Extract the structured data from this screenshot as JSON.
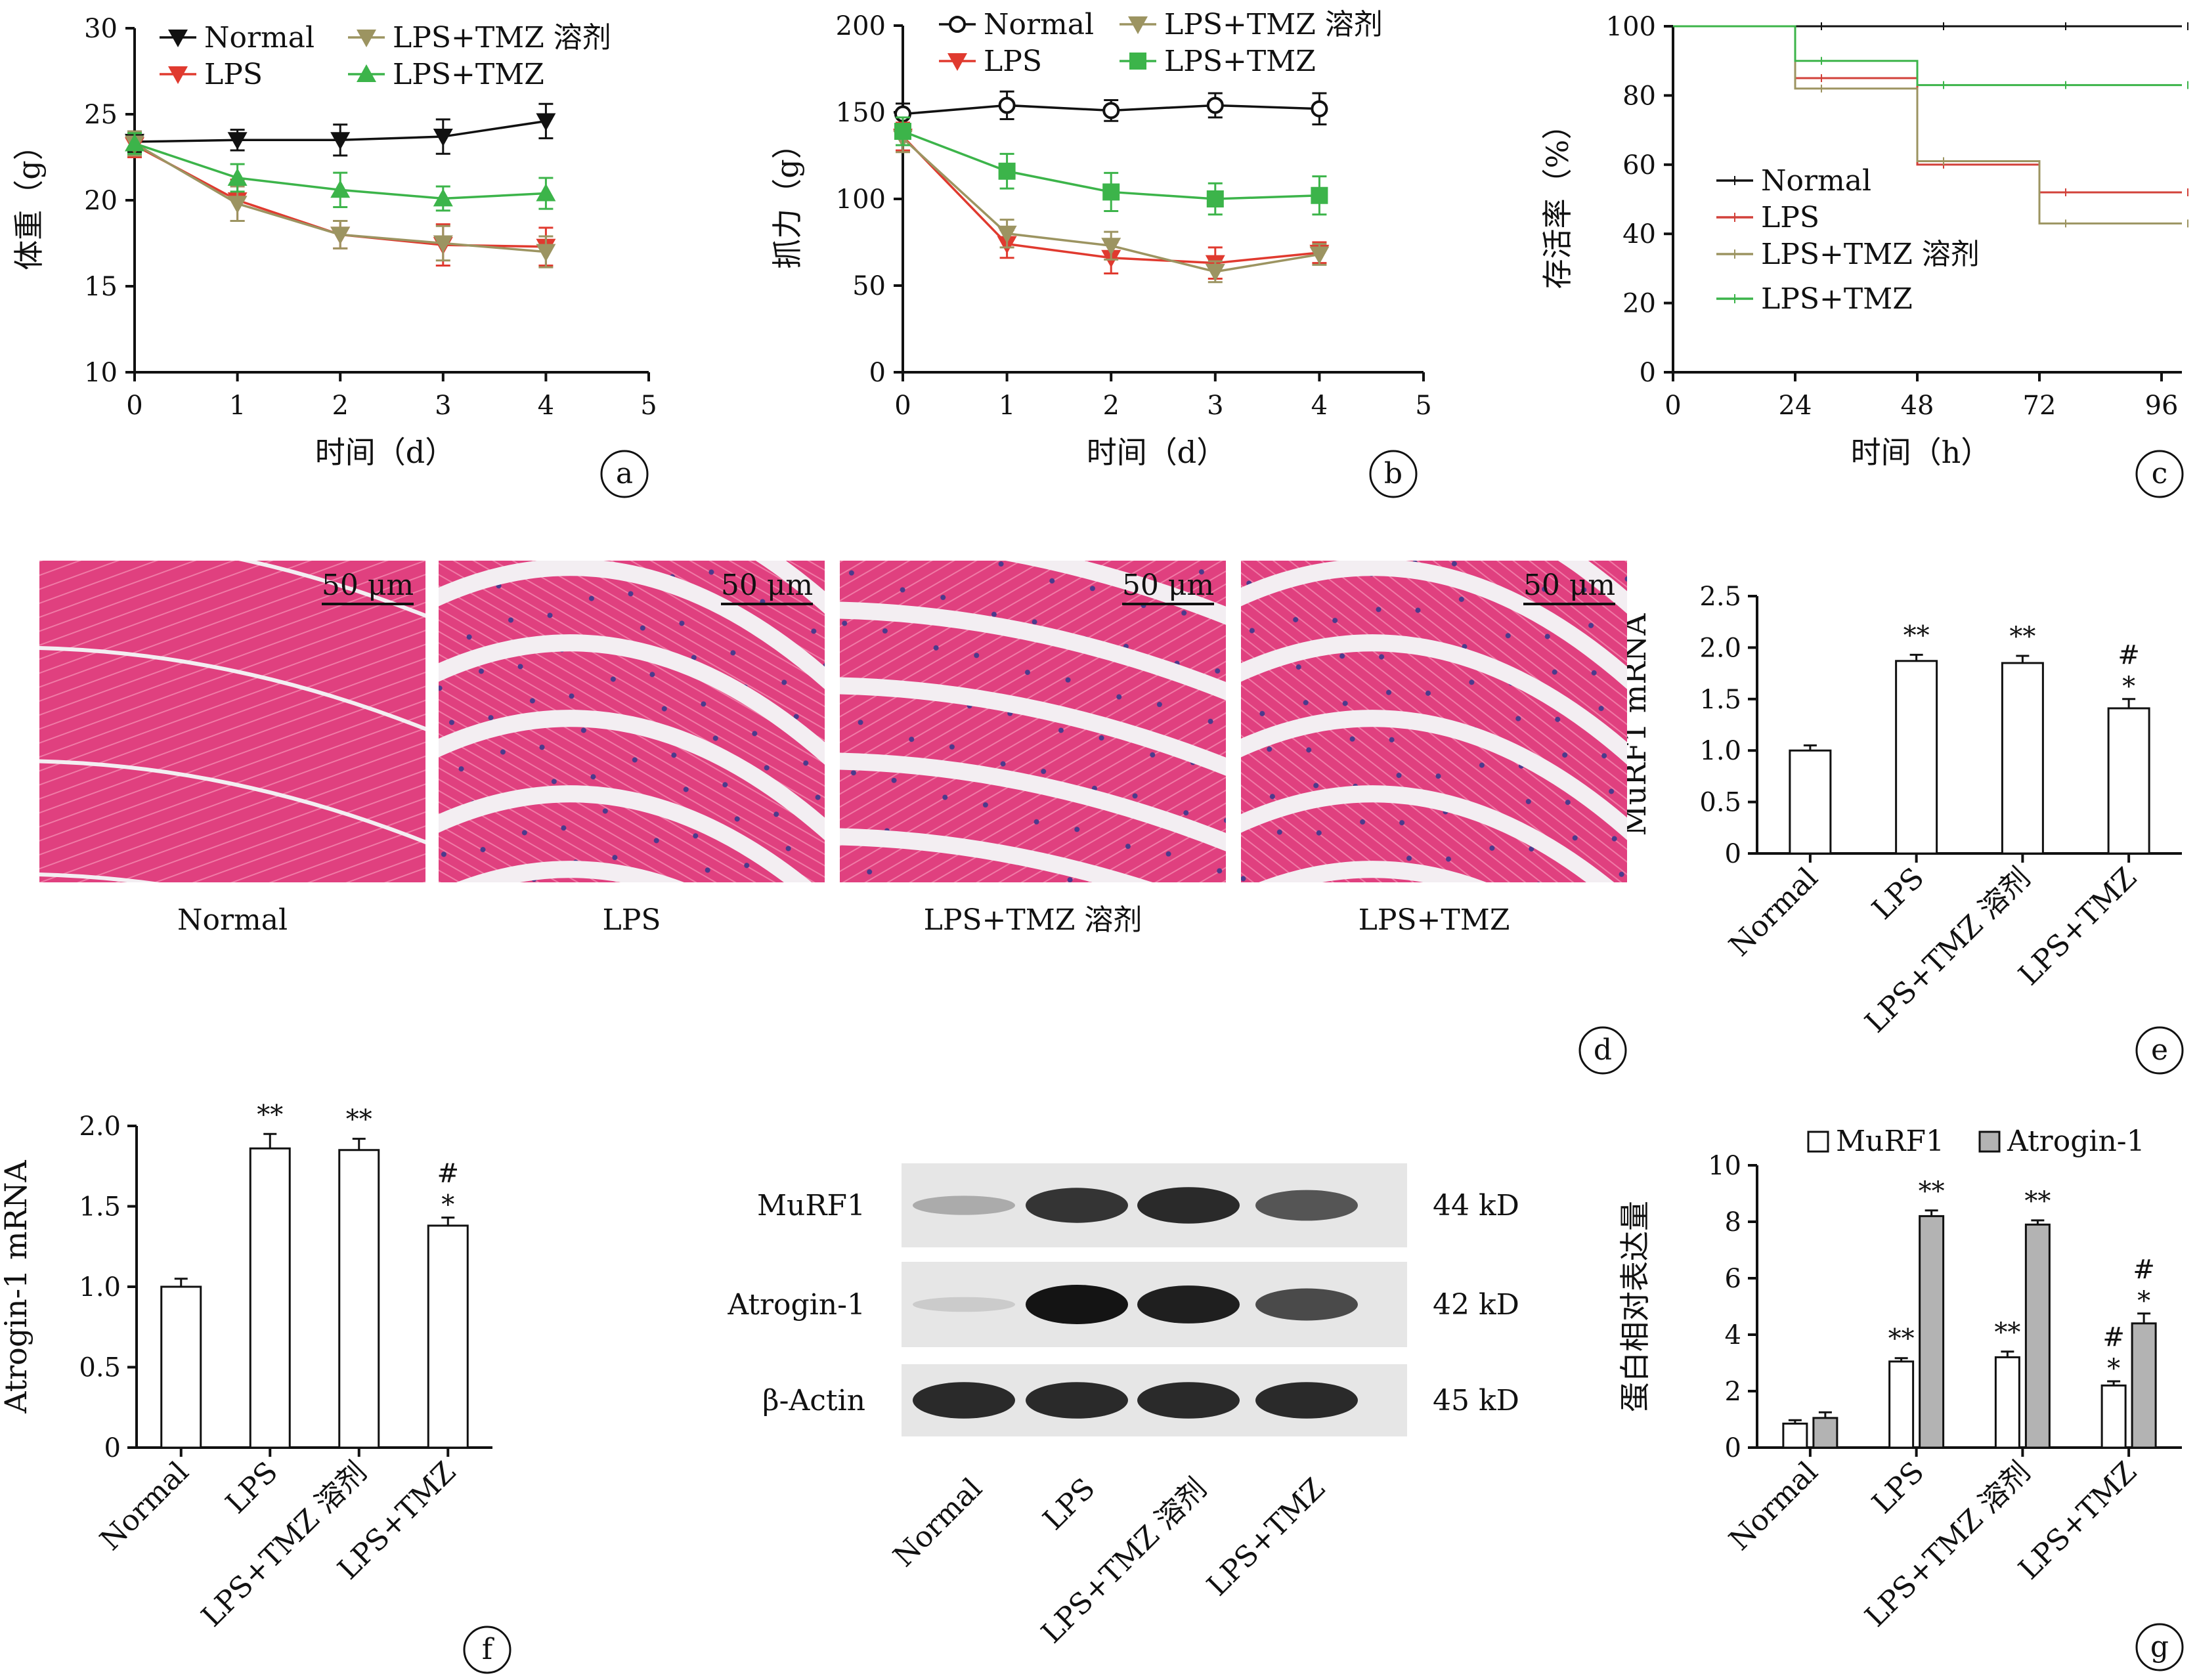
{
  "chart_data": [
    {
      "type": "line",
      "panel": "a",
      "xlabel": "时间（d）",
      "ylabel": "体重（g）",
      "xlim": [
        0,
        5
      ],
      "ylim": [
        10,
        30
      ],
      "xticks": [
        0,
        1,
        2,
        3,
        4,
        5
      ],
      "yticks": [
        10,
        15,
        20,
        25,
        30
      ],
      "legend": "top-left",
      "x": [
        0,
        1,
        2,
        3,
        4
      ],
      "series": [
        {
          "name": "Normal",
          "color": "#111111",
          "marker": "down-triangle",
          "values": [
            23.4,
            23.5,
            23.5,
            23.7,
            24.6
          ],
          "err": [
            0.6,
            0.6,
            0.9,
            1.0,
            1.0
          ]
        },
        {
          "name": "LPS",
          "color": "#e03a2f",
          "marker": "down-triangle",
          "values": [
            23.2,
            20.0,
            18.0,
            17.4,
            17.3
          ],
          "err": [
            0.7,
            1.2,
            0.8,
            1.2,
            1.1
          ]
        },
        {
          "name": "LPS+TMZ 溶剂",
          "color": "#9c9461",
          "marker": "down-triangle",
          "values": [
            23.3,
            19.8,
            18.0,
            17.5,
            17.0
          ],
          "err": [
            0.7,
            1.0,
            0.8,
            1.0,
            0.9
          ]
        },
        {
          "name": "LPS+TMZ",
          "color": "#3cb44a",
          "marker": "up-triangle",
          "values": [
            23.3,
            21.3,
            20.6,
            20.1,
            20.4
          ],
          "err": [
            0.6,
            0.8,
            1.0,
            0.7,
            0.9
          ]
        }
      ]
    },
    {
      "type": "line",
      "panel": "b",
      "xlabel": "时间（d）",
      "ylabel": "抓力（g）",
      "xlim": [
        0,
        5
      ],
      "ylim": [
        0,
        200
      ],
      "xticks": [
        0,
        1,
        2,
        3,
        4,
        5
      ],
      "yticks": [
        0,
        50,
        100,
        150,
        200
      ],
      "legend": "top",
      "x": [
        0,
        1,
        2,
        3,
        4
      ],
      "series": [
        {
          "name": "Normal",
          "color": "#111111",
          "marker": "open-circle",
          "values": [
            149,
            154,
            151,
            154,
            152
          ],
          "err": [
            6,
            8,
            6,
            7,
            9
          ]
        },
        {
          "name": "LPS",
          "color": "#e03a2f",
          "marker": "down-triangle",
          "values": [
            136,
            74,
            66,
            63,
            69
          ],
          "err": [
            8,
            8,
            9,
            9,
            6
          ]
        },
        {
          "name": "LPS+TMZ 溶剂",
          "color": "#9c9461",
          "marker": "down-triangle",
          "values": [
            135,
            80,
            73,
            58,
            68
          ],
          "err": [
            8,
            8,
            8,
            6,
            6
          ]
        },
        {
          "name": "LPS+TMZ",
          "color": "#3cb44a",
          "marker": "filled-square",
          "values": [
            139,
            116,
            104,
            100,
            102
          ],
          "err": [
            8,
            10,
            11,
            9,
            11
          ]
        }
      ]
    },
    {
      "type": "line",
      "panel": "c",
      "step": true,
      "xlabel": "时间（h）",
      "ylabel": "存活率（%）",
      "xlim": [
        0,
        100
      ],
      "ylim": [
        0,
        100
      ],
      "xticks": [
        0,
        24,
        48,
        72,
        96
      ],
      "yticks": [
        0,
        20,
        40,
        60,
        80,
        100
      ],
      "legend": "center-left",
      "x": [
        0,
        24,
        48,
        72,
        96
      ],
      "series": [
        {
          "name": "Normal",
          "color": "#111111",
          "values": [
            100,
            100,
            100,
            100,
            100
          ]
        },
        {
          "name": "LPS",
          "color": "#d2413a",
          "values": [
            100,
            85,
            60,
            52,
            52
          ]
        },
        {
          "name": "LPS+TMZ 溶剂",
          "color": "#9c9461",
          "values": [
            100,
            82,
            61,
            43,
            43
          ]
        },
        {
          "name": "LPS+TMZ",
          "color": "#3cb44a",
          "values": [
            100,
            90,
            83,
            83,
            83
          ]
        }
      ]
    },
    {
      "type": "bar",
      "panel": "e",
      "ylabel": "MuRF1 mRNA",
      "ylim": [
        0,
        2.5
      ],
      "yticks": [
        "0",
        "0.5",
        "1.0",
        "1.5",
        "2.0",
        "2.5"
      ],
      "categories": [
        "Normal",
        "LPS",
        "LPS+TMZ 溶剂",
        "LPS+TMZ"
      ],
      "values": [
        1.0,
        1.87,
        1.85,
        1.41
      ],
      "err": [
        0.05,
        0.06,
        0.07,
        0.09
      ],
      "annotations": [
        "",
        "**",
        "**",
        "#\n*"
      ]
    },
    {
      "type": "bar",
      "panel": "f",
      "ylabel": "Atrogin-1 mRNA",
      "ylim": [
        0,
        2.0
      ],
      "yticks": [
        "0",
        "0.5",
        "1.0",
        "1.5",
        "2.0"
      ],
      "categories": [
        "Normal",
        "LPS",
        "LPS+TMZ 溶剂",
        "LPS+TMZ"
      ],
      "values": [
        1.0,
        1.86,
        1.85,
        1.38
      ],
      "err": [
        0.05,
        0.09,
        0.07,
        0.05
      ],
      "annotations": [
        "",
        "**",
        "**",
        "#\n*"
      ]
    },
    {
      "type": "bar",
      "panel": "g",
      "ylabel": "蛋白相对表达量",
      "ylim": [
        0,
        10
      ],
      "yticks": [
        "0",
        "2",
        "4",
        "6",
        "8",
        "10"
      ],
      "legend": "top",
      "categories": [
        "Normal",
        "LPS",
        "LPS+TMZ 溶剂",
        "LPS+TMZ"
      ],
      "series": [
        {
          "name": "MuRF1",
          "color": "#ffffff",
          "values": [
            0.85,
            3.05,
            3.2,
            2.2
          ],
          "err": [
            0.12,
            0.12,
            0.2,
            0.15
          ],
          "annotations": [
            "",
            "**",
            "**",
            "#\n*"
          ]
        },
        {
          "name": "Atrogin-1",
          "color": "#b3b3b3",
          "values": [
            1.05,
            8.2,
            7.9,
            4.4
          ],
          "err": [
            0.2,
            0.2,
            0.15,
            0.35
          ],
          "annotations": [
            "",
            "**",
            "**",
            "#\n*"
          ]
        }
      ]
    }
  ],
  "histology": {
    "scale_bar": "50 μm",
    "captions": [
      "Normal",
      "LPS",
      "LPS+TMZ 溶剂",
      "LPS+TMZ"
    ],
    "tissue_color": "#e0407f",
    "gap_color": "#f3eef2"
  },
  "western_blot": {
    "bands": [
      {
        "protein": "MuRF1",
        "size": "44 kD",
        "intensity": [
          0.3,
          0.85,
          0.9,
          0.7
        ]
      },
      {
        "protein": "Atrogin-1",
        "size": "42 kD",
        "intensity": [
          0.15,
          1.0,
          0.95,
          0.75
        ]
      },
      {
        "protein": "β-Actin",
        "size": "45 kD",
        "intensity": [
          0.9,
          0.9,
          0.9,
          0.9
        ]
      }
    ],
    "lanes": [
      "Normal",
      "LPS",
      "LPS+TMZ 溶剂",
      "LPS+TMZ"
    ]
  },
  "panel_labels": [
    "a",
    "b",
    "c",
    "d",
    "e",
    "f",
    "g"
  ]
}
